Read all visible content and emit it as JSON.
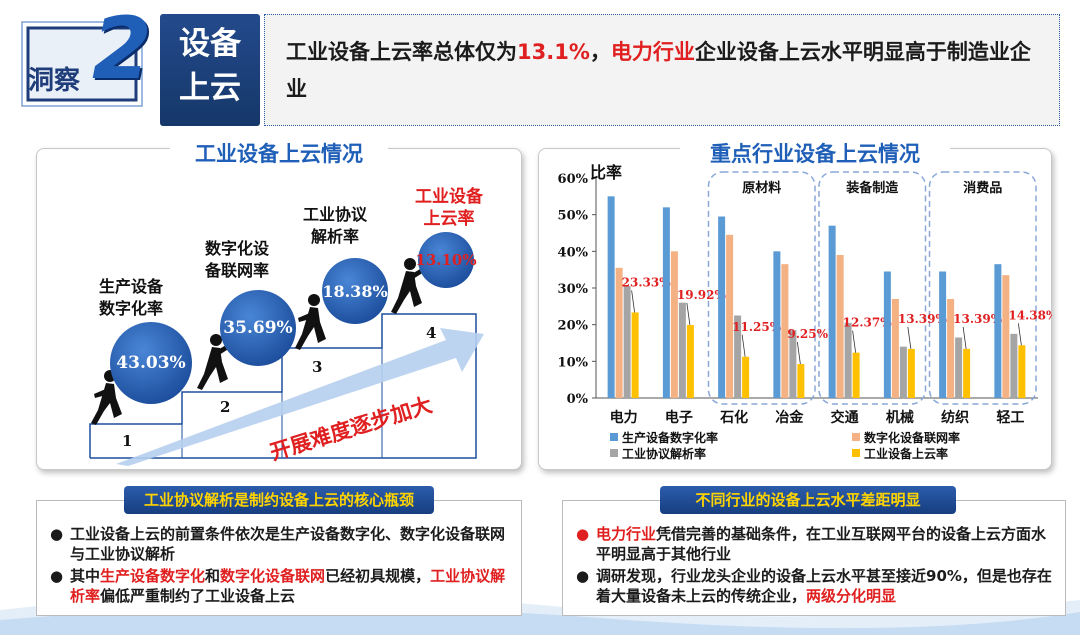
{
  "header": {
    "badge_text": "洞察",
    "badge_number": "2",
    "topic_line1": "设备",
    "topic_line2": "上云",
    "headline_part1": "工业设备上云率总体仅为",
    "headline_rate": "13.1%",
    "headline_part2": "，",
    "headline_highlight": "电力行业",
    "headline_part3": "企业设备上云水平明显高于制造业企业"
  },
  "left_panel": {
    "title": "工业设备上云情况",
    "steps": [
      {
        "label": "生产设备\n数字化率",
        "value": "43.03%",
        "num": "1"
      },
      {
        "label": "数字化设\n备联网率",
        "value": "35.69%",
        "num": "2"
      },
      {
        "label": "工业协议\n解析率",
        "value": "18.38%",
        "num": "3"
      },
      {
        "label": "工业设备\n上云率",
        "value": "13.10%",
        "num": "4"
      }
    ],
    "arrow_text": "开展难度逐步加大"
  },
  "right_panel": {
    "title": "重点行业设备上云情况"
  },
  "chart_data": {
    "type": "bar",
    "ylabel": "比率",
    "ylim": [
      0,
      60
    ],
    "yticks": [
      "0%",
      "10%",
      "20%",
      "30%",
      "40%",
      "50%",
      "60%"
    ],
    "categories": [
      "电力",
      "电子",
      "石化",
      "冶金",
      "交通",
      "机械",
      "纺织",
      "轻工"
    ],
    "groups": [
      {
        "label": "原材料",
        "from": 2,
        "to": 3
      },
      {
        "label": "装备制造",
        "from": 4,
        "to": 5
      },
      {
        "label": "消费品",
        "from": 6,
        "to": 7
      }
    ],
    "series": [
      {
        "name": "生产设备数字化率",
        "color": "#5b9bd5",
        "values": [
          55,
          52,
          49.5,
          40,
          47,
          34.5,
          34.5,
          36.5
        ]
      },
      {
        "name": "数字化设备联网率",
        "color": "#f4b183",
        "values": [
          35.5,
          40,
          44.5,
          36.5,
          39,
          27,
          27,
          33.5
        ]
      },
      {
        "name": "工业协议解析率",
        "color": "#a5a5a5",
        "values": [
          30.5,
          26,
          22.5,
          18.5,
          20.5,
          14,
          16.5,
          17.5
        ]
      },
      {
        "name": "工业设备上云率",
        "color": "#ffc000",
        "values": [
          23.33,
          19.92,
          11.25,
          9.25,
          12.37,
          13.39,
          13.39,
          14.38
        ]
      }
    ],
    "data_labels": [
      "23.33%",
      "19.92%",
      "11.25%",
      "9.25%",
      "12.37%",
      "13.39%",
      "13.39%",
      "14.38%"
    ],
    "legend_position": "bottom"
  },
  "bottom_left": {
    "title": "工业协议解析是制约设备上云的核心瓶颈",
    "bullet1": "工业设备上云的前置条件依次是生产设备数字化、数字化设备联网与工业协议解析",
    "bullet2_a": "其中",
    "bullet2_b": "生产设备数字化",
    "bullet2_c": "和",
    "bullet2_d": "数字化设备联网",
    "bullet2_e": "已经初具规模，",
    "bullet2_f": "工业协议解析率",
    "bullet2_g": "偏低严重制约了工业设备上云"
  },
  "bottom_right": {
    "title": "不同行业的设备上云水平差距明显",
    "bullet1_a": "电力行业",
    "bullet1_b": "凭借完善的基础条件，在工业互联网平台的设备上云方面水平明显高于其他行业",
    "bullet2_a": "调研发现，行业龙头企业的设备上云水平甚至接近90%，但是也存在着大量设备未上云的传统企业，",
    "bullet2_b": "两级分化明显"
  },
  "colors": {
    "brand_blue": "#1f5fb8",
    "highlight_red": "#e02020",
    "bottom_title_text": "#ffd400"
  }
}
